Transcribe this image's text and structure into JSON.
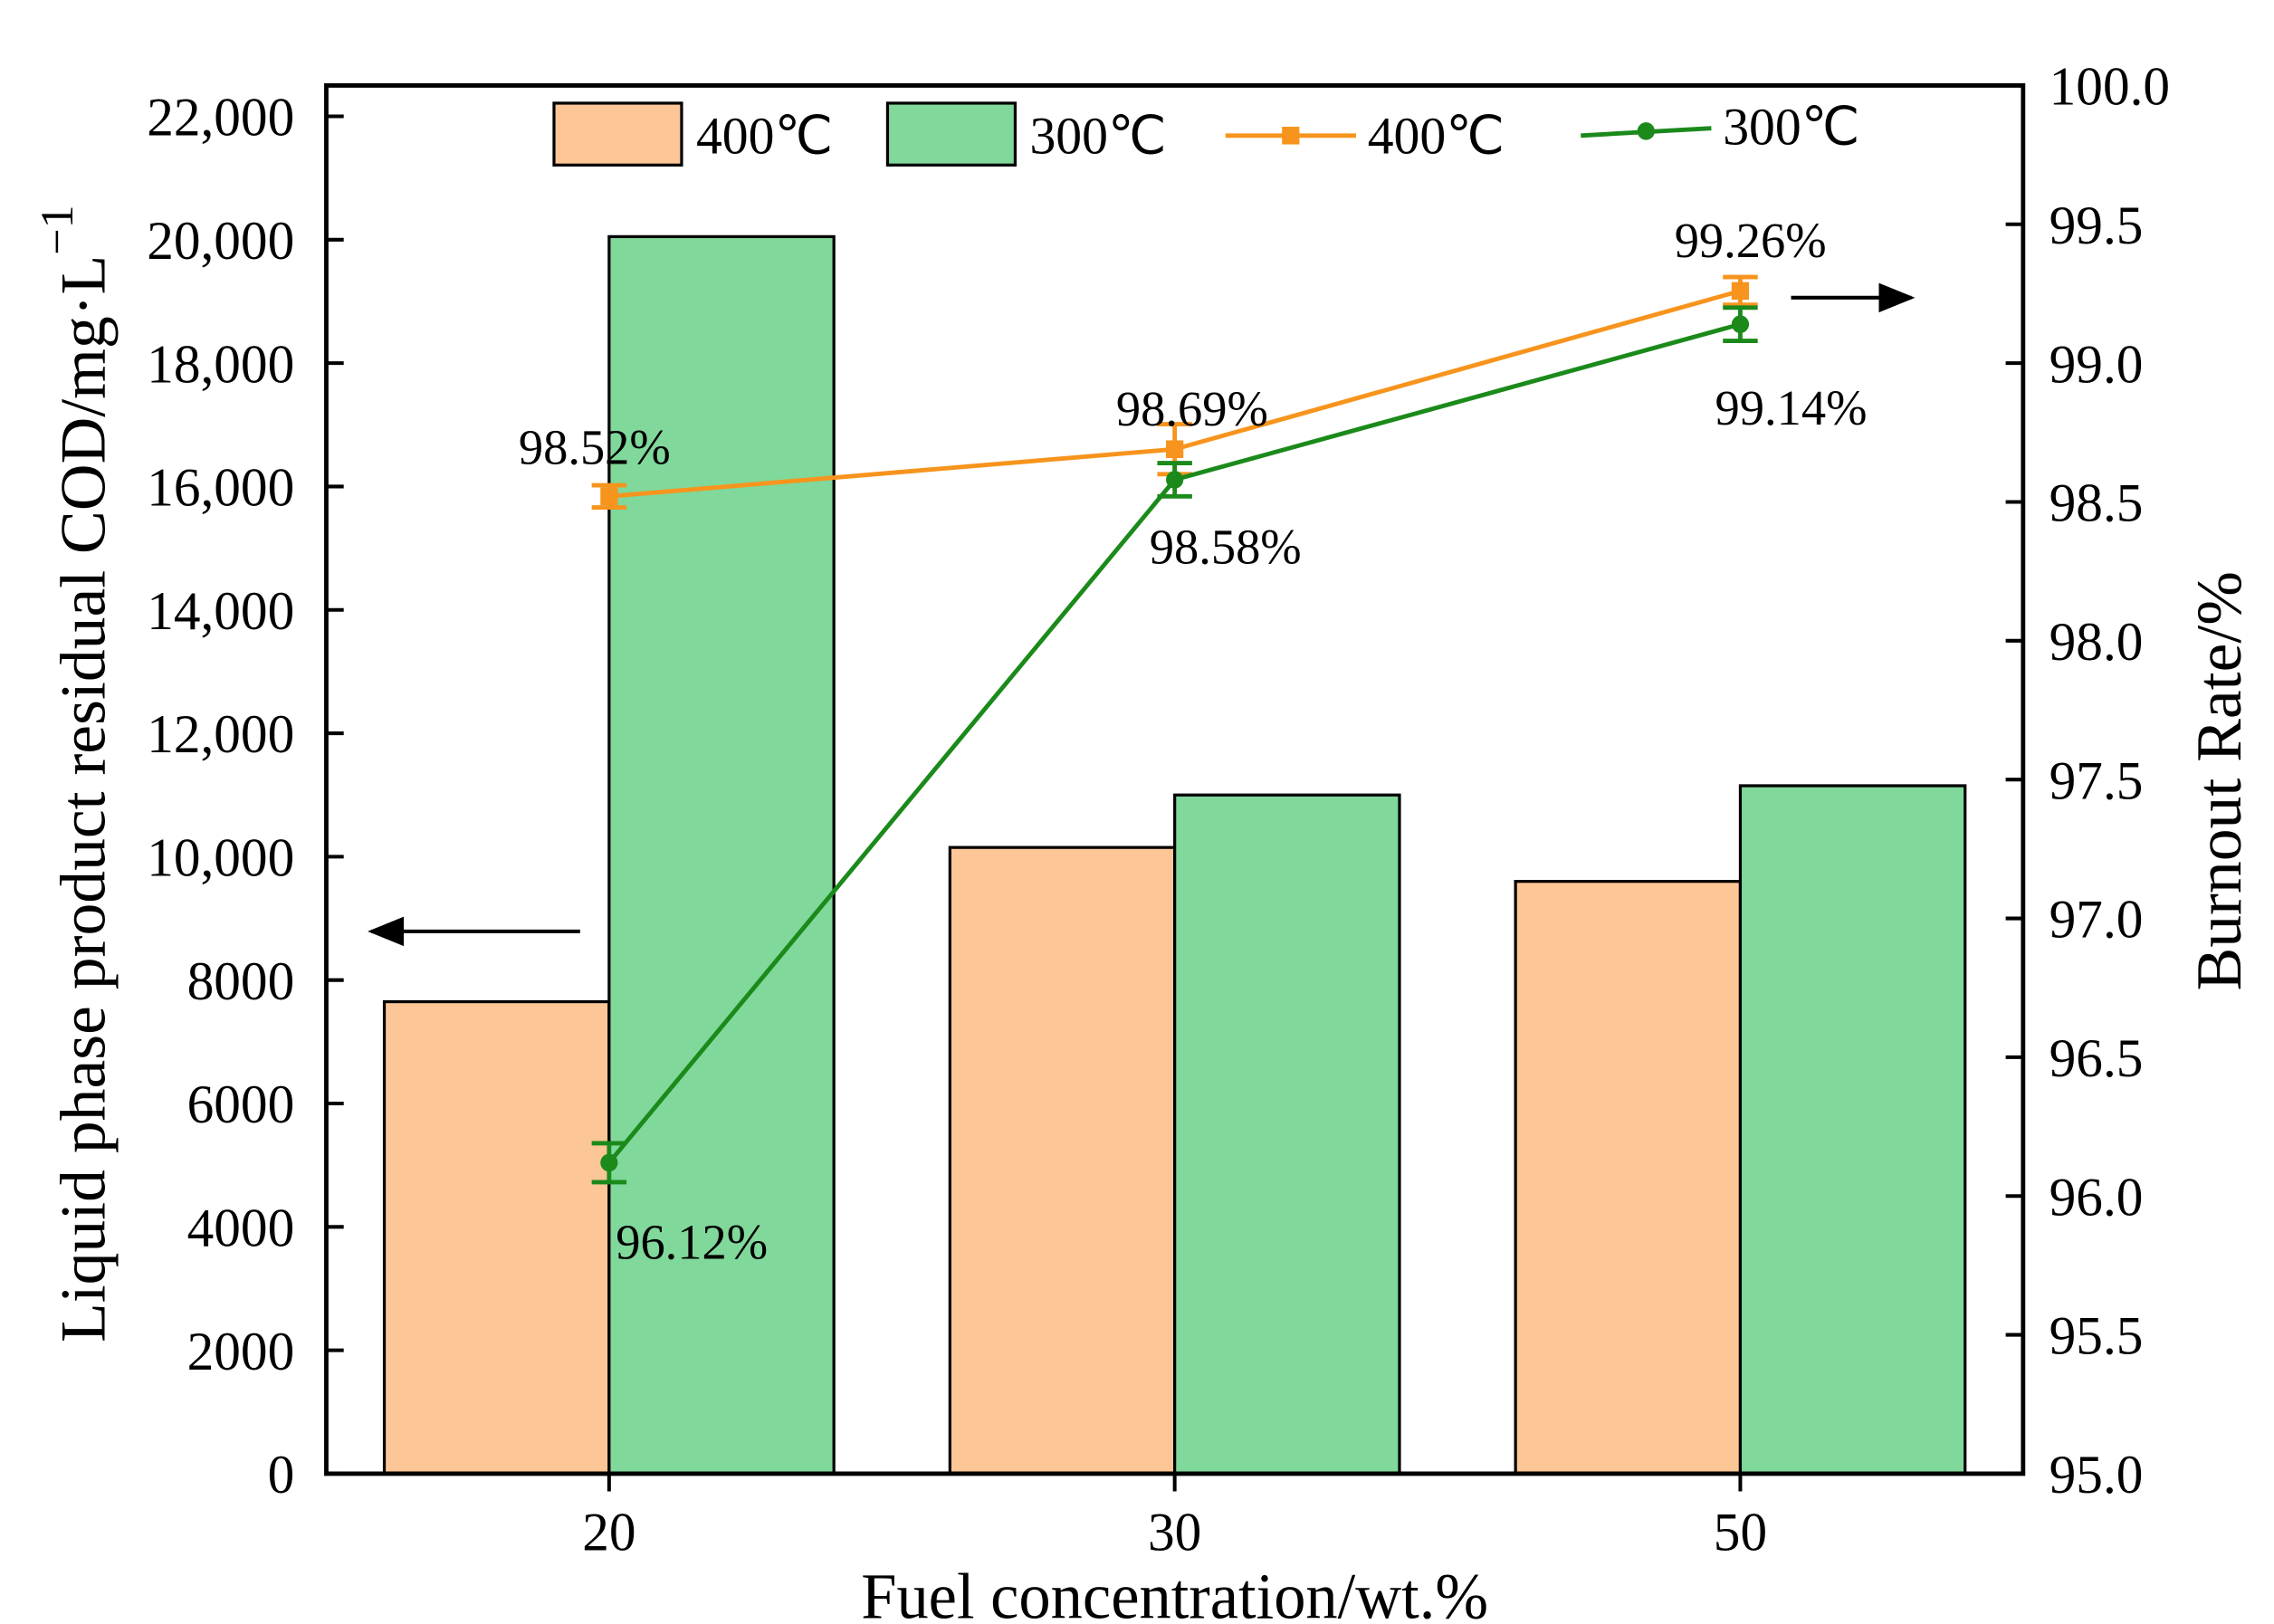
{
  "chart_data": {
    "type": "bar-line",
    "x_label": "Fuel concentration/wt.%",
    "y_label": "Liquid phase product residual COD/mg·L",
    "y_label_sup": "−1",
    "y2_label": "Burnout Rate/%",
    "categories": [
      "20",
      "30",
      "50"
    ],
    "ylim": [
      0,
      22500
    ],
    "yticks": [
      0,
      2000,
      4000,
      6000,
      8000,
      {
        "value": 10000,
        "label": "10,000"
      },
      {
        "value": 12000,
        "label": "12,000"
      },
      {
        "value": 14000,
        "label": "14,000"
      },
      {
        "value": 16000,
        "label": "16,000"
      },
      {
        "value": 18000,
        "label": "18,000"
      },
      {
        "value": 20000,
        "label": "20,000"
      },
      {
        "value": 22000,
        "label": "22,000"
      }
    ],
    "y2lim": [
      95,
      100
    ],
    "y2ticks": [
      {
        "value": 95,
        "label": "95.0"
      },
      {
        "value": 95.5,
        "label": "95.5"
      },
      {
        "value": 96,
        "label": "96.0"
      },
      {
        "value": 96.5,
        "label": "96.5"
      },
      {
        "value": 97,
        "label": "97.0"
      },
      {
        "value": 97.5,
        "label": "97.5"
      },
      {
        "value": 98,
        "label": "98.0"
      },
      {
        "value": 98.5,
        "label": "98.5"
      },
      {
        "value": 99,
        "label": "99.0"
      },
      {
        "value": 99.5,
        "label": "99.5"
      },
      {
        "value": 100,
        "label": "100.0"
      }
    ],
    "series": [
      {
        "name": "400℃",
        "type": "bar",
        "color": "#fdc696",
        "values": [
          7650,
          10150,
          9600
        ]
      },
      {
        "name": "300℃",
        "type": "bar",
        "color": "#80d89b",
        "values": [
          20050,
          11000,
          11150
        ]
      },
      {
        "name": "400℃",
        "type": "line",
        "axis": "y2",
        "color": "#f7941d",
        "marker": "square",
        "values": [
          98.52,
          98.69,
          99.26
        ],
        "errors": [
          0.04,
          0.09,
          0.05
        ],
        "value_labels": [
          "98.52%",
          "98.69%",
          "99.26%"
        ]
      },
      {
        "name": "300℃",
        "type": "line",
        "axis": "y2",
        "color": "#1b8a1b",
        "marker": "circle",
        "values": [
          96.12,
          98.58,
          99.14
        ],
        "errors": [
          0.07,
          0.06,
          0.06
        ],
        "value_labels": [
          "96.12%",
          "98.58%",
          "99.14%"
        ]
      }
    ]
  }
}
